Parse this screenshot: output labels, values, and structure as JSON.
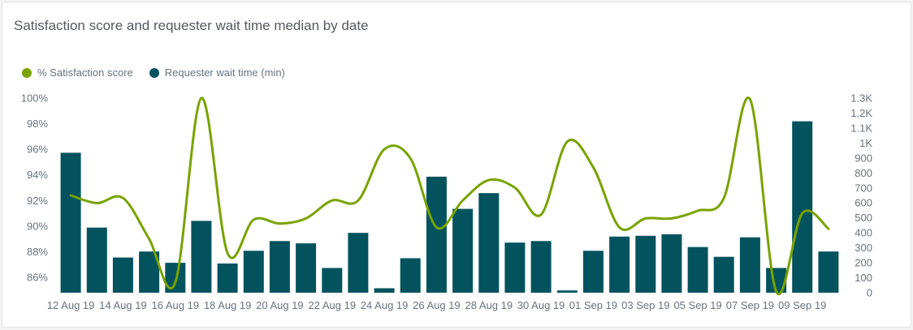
{
  "chart_data": {
    "type": "bar+line",
    "title": "Satisfaction score and requester wait time median by date",
    "legend": [
      {
        "name": "% Satisfaction score",
        "color": "#78a300"
      },
      {
        "name": "Requester wait time (min)",
        "color": "#03535e"
      }
    ],
    "legend_position": "top-left",
    "grid": false,
    "categories": [
      "12 Aug 19",
      "13 Aug 19",
      "14 Aug 19",
      "15 Aug 19",
      "16 Aug 19",
      "17 Aug 19",
      "18 Aug 19",
      "19 Aug 19",
      "20 Aug 19",
      "21 Aug 19",
      "22 Aug 19",
      "23 Aug 19",
      "24 Aug 19",
      "25 Aug 19",
      "26 Aug 19",
      "27 Aug 19",
      "28 Aug 19",
      "29 Aug 19",
      "30 Aug 19",
      "31 Aug 19",
      "01 Sep 19",
      "02 Sep 19",
      "03 Sep 19",
      "04 Sep 19",
      "05 Sep 19",
      "06 Sep 19",
      "07 Sep 19",
      "08 Sep 19",
      "09 Sep 19",
      "10 Sep 19"
    ],
    "x_tick_labels": [
      "12 Aug 19",
      "",
      "14 Aug 19",
      "",
      "16 Aug 19",
      "",
      "18 Aug 19",
      "",
      "20 Aug 19",
      "",
      "22 Aug 19",
      "",
      "24 Aug 19",
      "",
      "26 Aug 19",
      "",
      "28 Aug 19",
      "",
      "30 Aug 19",
      "",
      "01 Sep 19",
      "",
      "03 Sep 19",
      "",
      "05 Sep 19",
      "",
      "07 Sep 19",
      "",
      "09 Sep 19",
      ""
    ],
    "series": [
      {
        "name": "Requester wait time (min)",
        "type": "bar",
        "axis": "right",
        "color": "#03535e",
        "values": [
          935,
          435,
          235,
          275,
          200,
          480,
          195,
          280,
          345,
          330,
          165,
          400,
          30,
          230,
          775,
          560,
          665,
          335,
          345,
          15,
          280,
          375,
          380,
          390,
          305,
          240,
          370,
          165,
          1145,
          275
        ]
      },
      {
        "name": "% Satisfaction score",
        "type": "line",
        "axis": "left",
        "color": "#78a300",
        "values": [
          92.4,
          91.8,
          92.2,
          89.0,
          85.6,
          100.0,
          87.9,
          90.5,
          90.2,
          90.6,
          92.0,
          92.0,
          96.0,
          95.3,
          89.9,
          92.0,
          93.6,
          93.0,
          90.9,
          96.6,
          94.6,
          89.9,
          90.6,
          90.6,
          91.2,
          92.2,
          99.9,
          84.9,
          91.0,
          89.8
        ]
      }
    ],
    "left_axis": {
      "ticks": [
        "86%",
        "88%",
        "90%",
        "92%",
        "94%",
        "96%",
        "98%",
        "100%"
      ],
      "ylim": [
        84.8,
        100
      ]
    },
    "right_axis": {
      "ticks": [
        "0",
        "100",
        "200",
        "300",
        "400",
        "500",
        "600",
        "700",
        "800",
        "900",
        "1K",
        "1.1K",
        "1.2K",
        "1.3K"
      ],
      "ylim": [
        0,
        1300
      ]
    }
  }
}
